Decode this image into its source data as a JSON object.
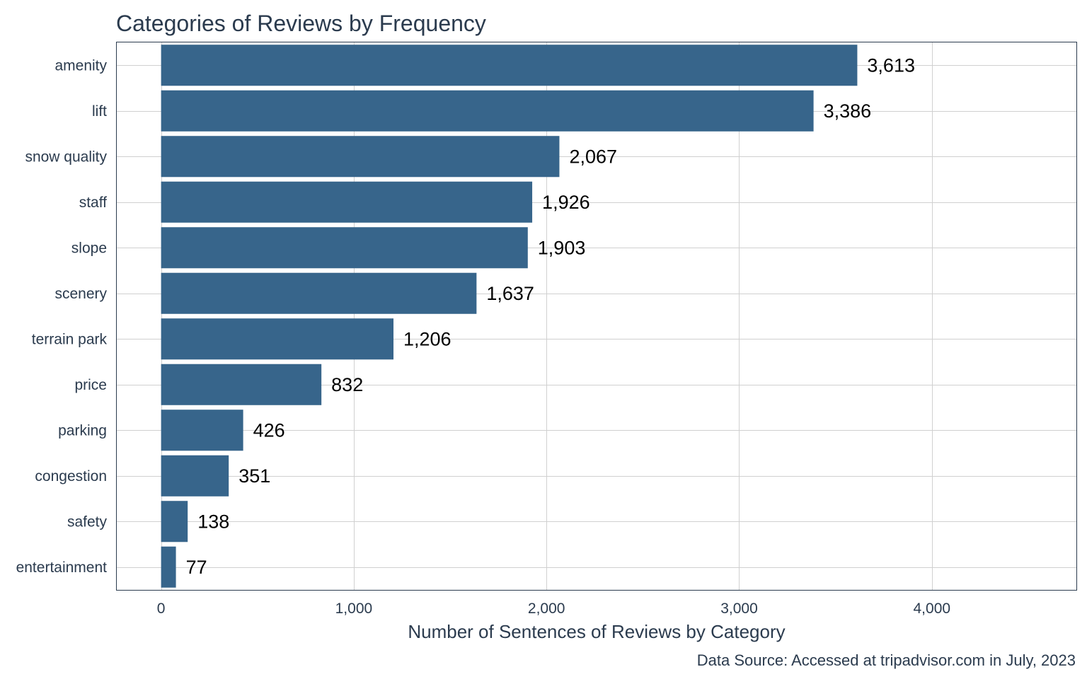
{
  "chart_data": {
    "type": "bar",
    "orientation": "horizontal",
    "title": "Categories of Reviews by Frequency",
    "xlabel": "Number of Sentences of Reviews by Category",
    "caption": "Data Source: Accessed at tripadvisor.com in July, 2023",
    "categories": [
      "amenity",
      "lift",
      "snow quality",
      "staff",
      "slope",
      "scenery",
      "terrain park",
      "price",
      "parking",
      "congestion",
      "safety",
      "entertainment"
    ],
    "values": [
      3613,
      3386,
      2067,
      1926,
      1903,
      1637,
      1206,
      832,
      426,
      351,
      138,
      77
    ],
    "value_labels": [
      "3,613",
      "3,386",
      "2,067",
      "1,926",
      "1,903",
      "1,637",
      "1,206",
      "832",
      "426",
      "351",
      "138",
      "77"
    ],
    "xticks": [
      0,
      1000,
      2000,
      3000,
      4000
    ],
    "xtick_labels": [
      "0",
      "1,000",
      "2,000",
      "3,000",
      "4,000"
    ],
    "xlim": [
      -230,
      4750
    ],
    "grid": true,
    "colors": {
      "bar": "#37658b",
      "text": "#2b3b4e",
      "grid": "#d0d0d0"
    }
  }
}
